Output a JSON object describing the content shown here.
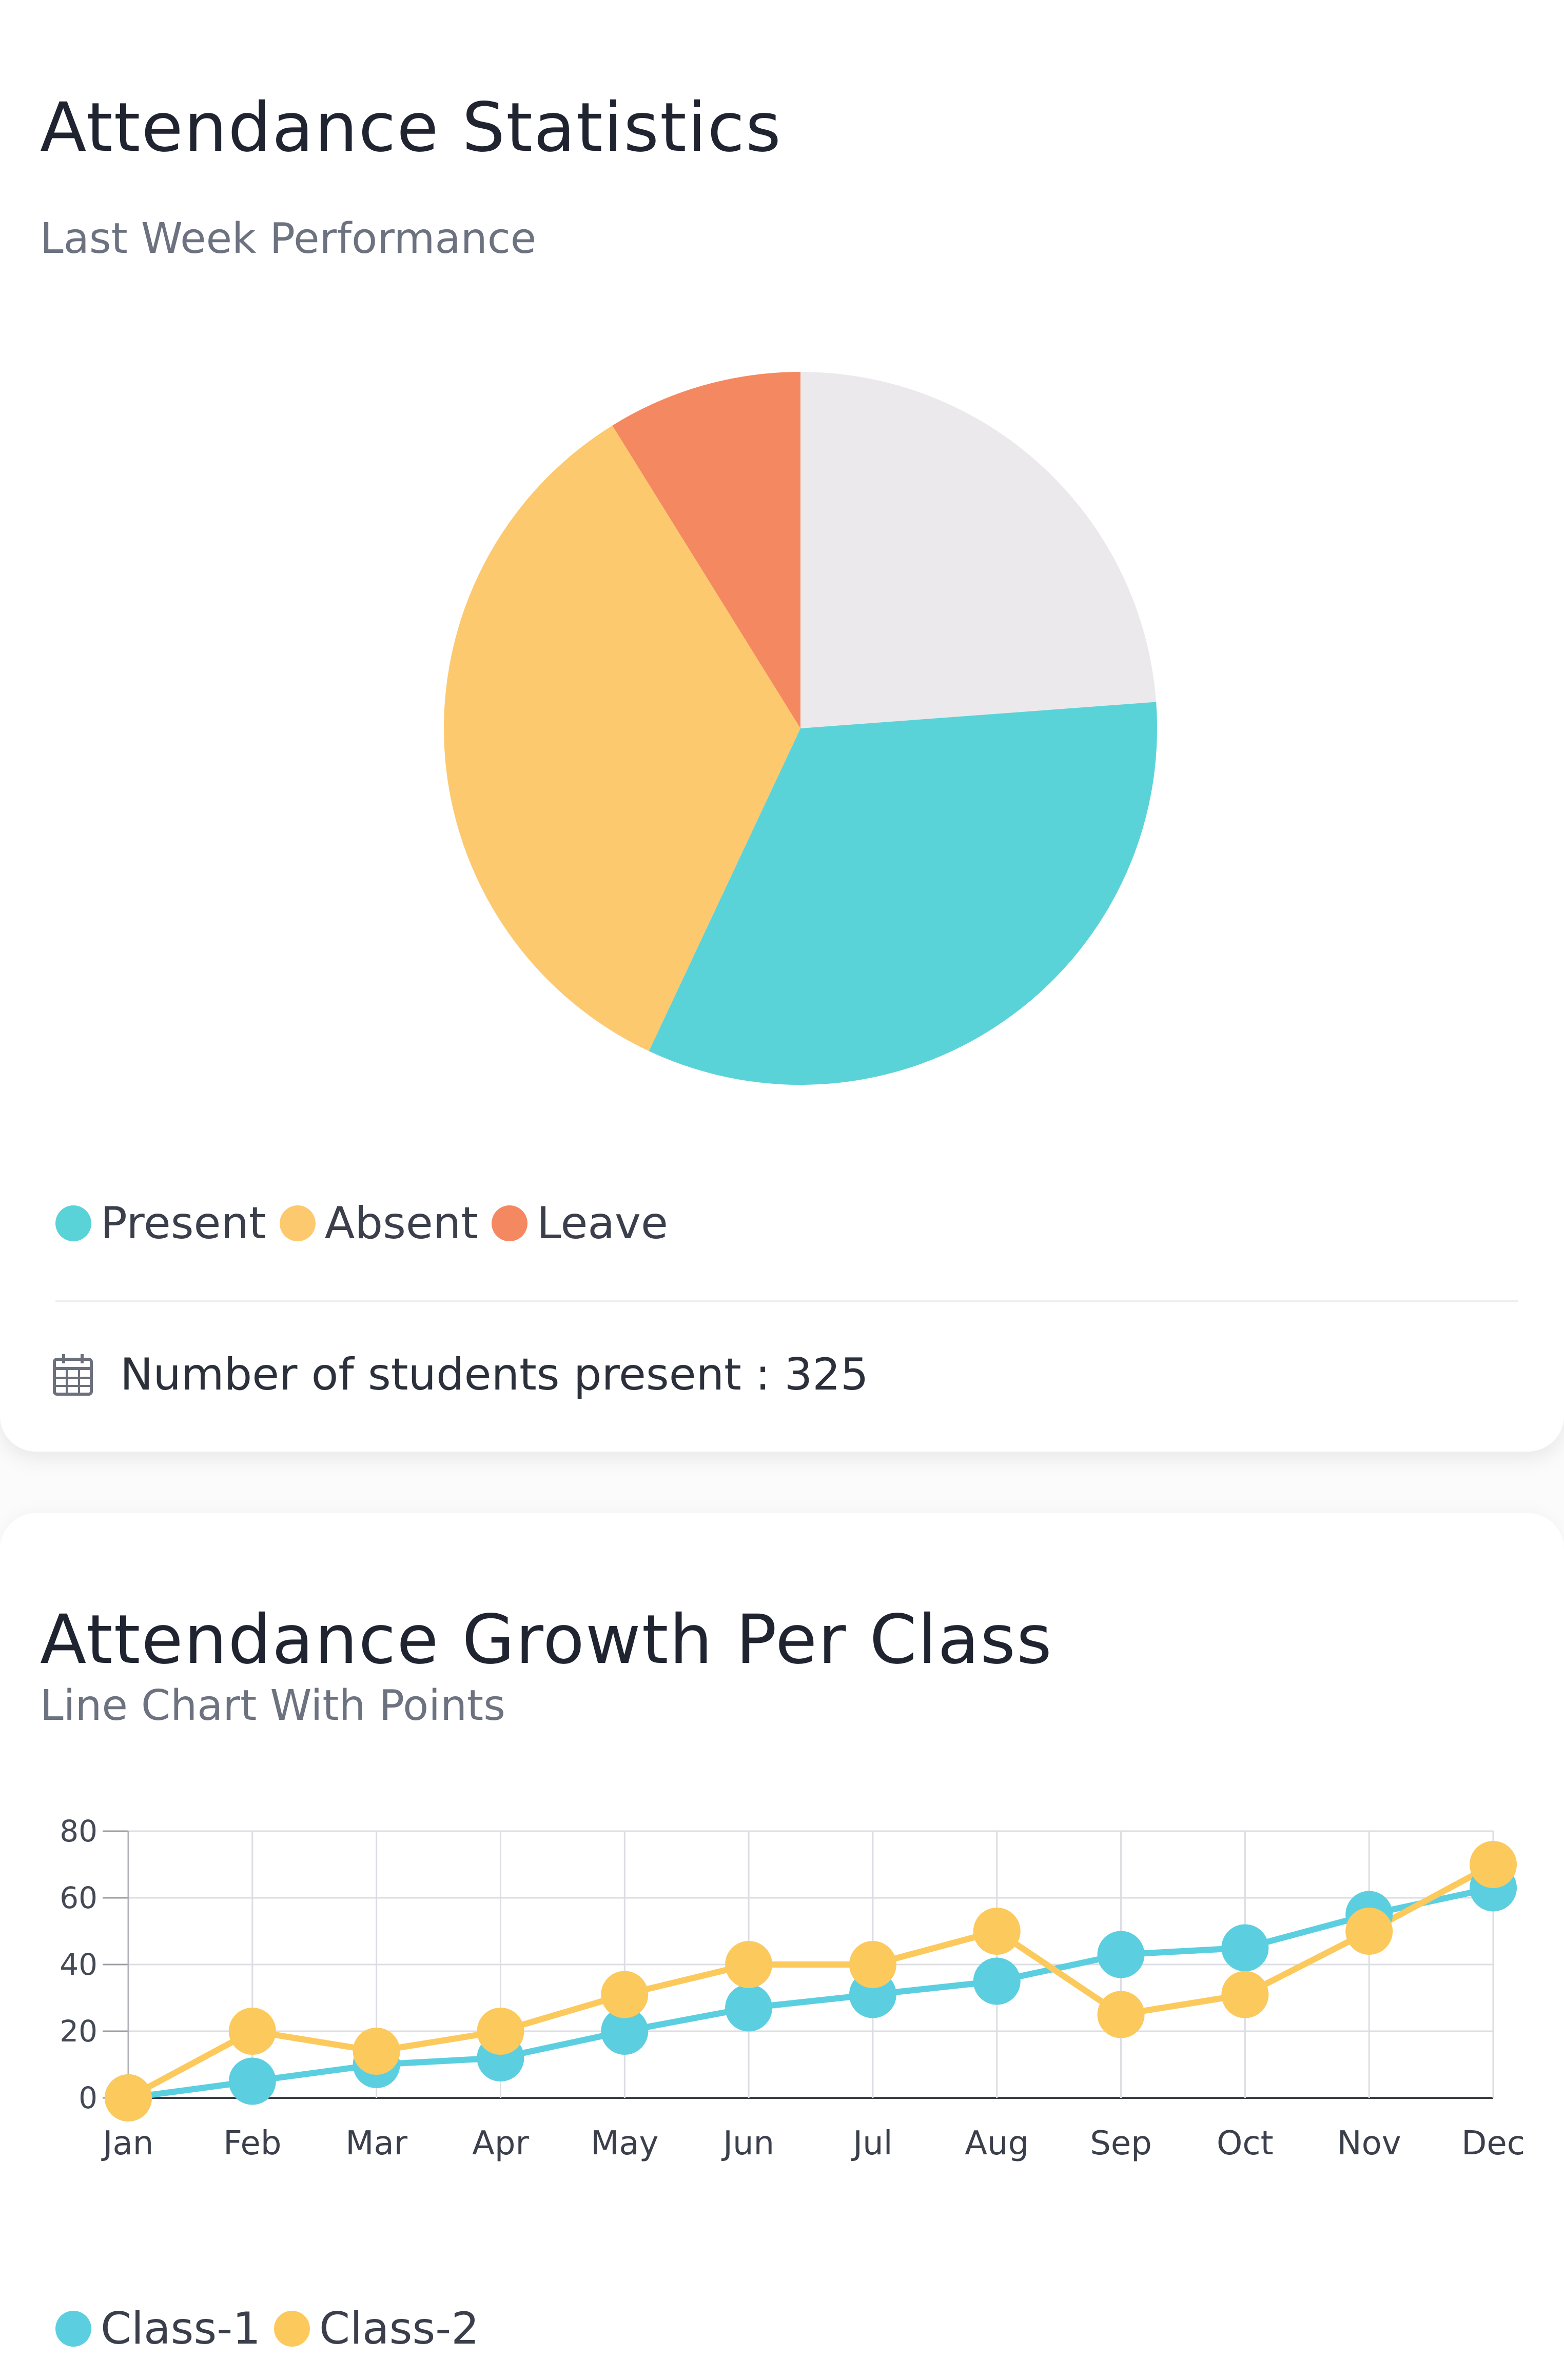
{
  "attendance": {
    "title": "Attendance Statistics",
    "subtitle": "Last Week Performance",
    "footer": {
      "icon": "calendar-icon",
      "text": "Number of students present : 325"
    }
  },
  "growth": {
    "title": "Attendance Growth Per Class",
    "subtitle": "Line Chart With Points"
  },
  "colors": {
    "present": "#5ad3d8",
    "absent": "#fdc96f",
    "leave": "#f48860",
    "unlabeled": "#ece9ec",
    "class1": "#5bcfe0",
    "class2": "#fcc95c"
  },
  "chart_data": [
    {
      "type": "pie",
      "labels": [
        "Present",
        "Absent",
        "Leave"
      ],
      "legend": [
        "Present",
        "Absent",
        "Leave"
      ],
      "legend_placement": "bottom-left",
      "slices": [
        {
          "label": "",
          "value": 23.7,
          "color": "#ece9ec"
        },
        {
          "label": "Present",
          "value": 33.0,
          "color": "#5ad3d8"
        },
        {
          "label": "Absent",
          "value": 34.0,
          "color": "#fdc96f"
        },
        {
          "label": "Leave",
          "value": 8.8,
          "color": "#f48860"
        }
      ]
    },
    {
      "type": "line",
      "categories": [
        "Jan",
        "Feb",
        "Mar",
        "Apr",
        "May",
        "Jun",
        "Jul",
        "Aug",
        "Sep",
        "Oct",
        "Nov",
        "Dec"
      ],
      "ylim": [
        0,
        80
      ],
      "yticks": [
        0,
        20,
        40,
        60,
        80
      ],
      "grid": true,
      "legend_placement": "bottom-left",
      "series": [
        {
          "name": "Class-1",
          "color": "#5bcfe0",
          "values": [
            0,
            5,
            10,
            12,
            20,
            27,
            31,
            35,
            43,
            45,
            55,
            63
          ]
        },
        {
          "name": "Class-2",
          "color": "#fcc95c",
          "values": [
            0,
            20,
            14,
            20,
            31,
            40,
            40,
            50,
            25,
            31,
            50,
            70
          ]
        }
      ]
    }
  ]
}
